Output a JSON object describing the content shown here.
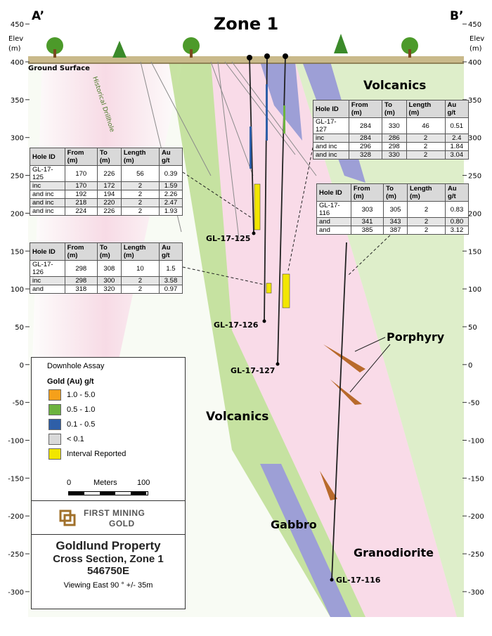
{
  "header": {
    "title": "Zone 1",
    "left_section": "A’",
    "right_section": "B’"
  },
  "elevation_axis": {
    "label_line1": "Elev",
    "label_line2": "(m)",
    "ticks": [
      450,
      400,
      350,
      300,
      250,
      200,
      150,
      100,
      50,
      0,
      -50,
      -100,
      -150,
      -200,
      -250,
      -300
    ]
  },
  "labels": {
    "ground_surface": "Ground Surface",
    "historical_drillhole": "Historical Drillhole",
    "volcanics_upper": "Volcanics",
    "volcanics_lower": "Volcanics",
    "porphyry": "Porphyry",
    "gabbro": "Gabbro",
    "granodiorite": "Granodiorite"
  },
  "holes": {
    "gl_17_125": "GL-17-125",
    "gl_17_126": "GL-17-126",
    "gl_17_127": "GL-17-127",
    "gl_17_116": "GL-17-116"
  },
  "tables": [
    {
      "header": [
        "Hole ID",
        "From (m)",
        "To (m)",
        "Length (m)",
        "Au g/t"
      ],
      "rows": [
        [
          "GL-17-125",
          "170",
          "226",
          "56",
          "0.39"
        ],
        [
          "inc",
          "170",
          "172",
          "2",
          "1.59"
        ],
        [
          "and inc",
          "192",
          "194",
          "2",
          "2.26"
        ],
        [
          "and inc",
          "218",
          "220",
          "2",
          "2.47"
        ],
        [
          "and inc",
          "224",
          "226",
          "2",
          "1.93"
        ]
      ]
    },
    {
      "header": [
        "Hole ID",
        "From (m)",
        "To (m)",
        "Length (m)",
        "Au g/t"
      ],
      "rows": [
        [
          "GL-17-126",
          "298",
          "308",
          "10",
          "1.5"
        ],
        [
          "inc",
          "298",
          "300",
          "2",
          "3.58"
        ],
        [
          "and",
          "318",
          "320",
          "2",
          "0.97"
        ]
      ]
    },
    {
      "header": [
        "Hole ID",
        "From (m)",
        "To (m)",
        "Length (m)",
        "Au g/t"
      ],
      "rows": [
        [
          "GL-17-127",
          "284",
          "330",
          "46",
          "0.51"
        ],
        [
          "inc",
          "284",
          "286",
          "2",
          "2.4"
        ],
        [
          "and inc",
          "296",
          "298",
          "2",
          "1.84"
        ],
        [
          "and inc",
          "328",
          "330",
          "2",
          "3.04"
        ]
      ]
    },
    {
      "header": [
        "Hole ID",
        "From (m)",
        "To (m)",
        "Length (m)",
        "Au g/t"
      ],
      "rows": [
        [
          "GL-17-116",
          "303",
          "305",
          "2",
          "0.83"
        ],
        [
          "and",
          "341",
          "343",
          "2",
          "0.80"
        ],
        [
          "and",
          "385",
          "387",
          "2",
          "3.12"
        ]
      ]
    }
  ],
  "legend": {
    "title": "Downhole Assay",
    "subtitle": "Gold (Au) g/t",
    "items": [
      {
        "label": "1.0 - 5.0",
        "color": "#f5a01a"
      },
      {
        "label": "0.5 - 1.0",
        "color": "#6cb33f"
      },
      {
        "label": "0.1 - 0.5",
        "color": "#2e5fa8"
      },
      {
        "label": "< 0.1",
        "color": "#d9d9d9"
      },
      {
        "label": "Interval Reported",
        "color": "#f2e600"
      }
    ],
    "scale_start": "0",
    "scale_unit": "Meters",
    "scale_end": "100"
  },
  "logo": {
    "line1": "First Mining",
    "line2": "Gold"
  },
  "title_block": {
    "title": "Goldlund Property",
    "subtitle": "Cross Section, Zone 1",
    "easting": "546750E",
    "viewing": "Viewing East 90 ° +/- 35m"
  }
}
